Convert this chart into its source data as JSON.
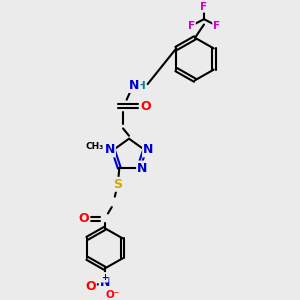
{
  "bg_color": "#ebebeb",
  "atom_colors": {
    "C": "#000000",
    "N": "#0000cc",
    "O": "#ff0000",
    "S": "#ccaa00",
    "F": "#cc00cc",
    "H": "#008080"
  },
  "scale": 10,
  "lw": 1.5,
  "fs": 9,
  "fs_small": 7.5
}
